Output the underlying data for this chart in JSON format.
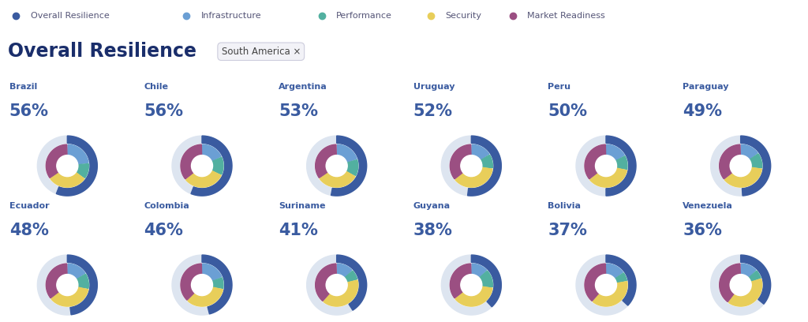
{
  "title": "Overall Resilience",
  "subtitle": "South America ×",
  "legend": [
    {
      "label": "Overall Resilience",
      "color": "#3A5BA0"
    },
    {
      "label": "Infrastructure",
      "color": "#6B9FD4"
    },
    {
      "label": "Performance",
      "color": "#52B0A0"
    },
    {
      "label": "Security",
      "color": "#E8CE5A"
    },
    {
      "label": "Market Readiness",
      "color": "#9B4F82"
    }
  ],
  "countries": [
    {
      "name": "Brazil",
      "score": 56,
      "segments": [
        {
          "label": "Infrastructure",
          "value": 23,
          "color": "#6B9FD4"
        },
        {
          "label": "Performance",
          "value": 12,
          "color": "#52B0A0"
        },
        {
          "label": "Security",
          "value": 30,
          "color": "#E8CE5A"
        },
        {
          "label": "Market Readiness",
          "value": 35,
          "color": "#9B4F82"
        }
      ]
    },
    {
      "name": "Chile",
      "score": 56,
      "segments": [
        {
          "label": "Infrastructure",
          "value": 18,
          "color": "#6B9FD4"
        },
        {
          "label": "Performance",
          "value": 14,
          "color": "#52B0A0"
        },
        {
          "label": "Security",
          "value": 32,
          "color": "#E8CE5A"
        },
        {
          "label": "Market Readiness",
          "value": 36,
          "color": "#9B4F82"
        }
      ]
    },
    {
      "name": "Argentina",
      "score": 53,
      "segments": [
        {
          "label": "Infrastructure",
          "value": 20,
          "color": "#6B9FD4"
        },
        {
          "label": "Performance",
          "value": 13,
          "color": "#52B0A0"
        },
        {
          "label": "Security",
          "value": 32,
          "color": "#E8CE5A"
        },
        {
          "label": "Market Readiness",
          "value": 35,
          "color": "#9B4F82"
        }
      ]
    },
    {
      "name": "Uruguay",
      "score": 52,
      "segments": [
        {
          "label": "Infrastructure",
          "value": 16,
          "color": "#6B9FD4"
        },
        {
          "label": "Performance",
          "value": 11,
          "color": "#52B0A0"
        },
        {
          "label": "Security",
          "value": 37,
          "color": "#E8CE5A"
        },
        {
          "label": "Market Readiness",
          "value": 36,
          "color": "#9B4F82"
        }
      ]
    },
    {
      "name": "Peru",
      "score": 50,
      "segments": [
        {
          "label": "Infrastructure",
          "value": 17,
          "color": "#6B9FD4"
        },
        {
          "label": "Performance",
          "value": 11,
          "color": "#52B0A0"
        },
        {
          "label": "Security",
          "value": 36,
          "color": "#E8CE5A"
        },
        {
          "label": "Market Readiness",
          "value": 36,
          "color": "#9B4F82"
        }
      ]
    },
    {
      "name": "Paraguay",
      "score": 49,
      "segments": [
        {
          "label": "Infrastructure",
          "value": 15,
          "color": "#6B9FD4"
        },
        {
          "label": "Performance",
          "value": 12,
          "color": "#52B0A0"
        },
        {
          "label": "Security",
          "value": 37,
          "color": "#E8CE5A"
        },
        {
          "label": "Market Readiness",
          "value": 36,
          "color": "#9B4F82"
        }
      ]
    },
    {
      "name": "Ecuador",
      "score": 48,
      "segments": [
        {
          "label": "Infrastructure",
          "value": 16,
          "color": "#6B9FD4"
        },
        {
          "label": "Performance",
          "value": 12,
          "color": "#52B0A0"
        },
        {
          "label": "Security",
          "value": 36,
          "color": "#E8CE5A"
        },
        {
          "label": "Market Readiness",
          "value": 36,
          "color": "#9B4F82"
        }
      ]
    },
    {
      "name": "Colombia",
      "score": 46,
      "segments": [
        {
          "label": "Infrastructure",
          "value": 19,
          "color": "#6B9FD4"
        },
        {
          "label": "Performance",
          "value": 9,
          "color": "#52B0A0"
        },
        {
          "label": "Security",
          "value": 34,
          "color": "#E8CE5A"
        },
        {
          "label": "Market Readiness",
          "value": 38,
          "color": "#9B4F82"
        }
      ]
    },
    {
      "name": "Suriname",
      "score": 41,
      "segments": [
        {
          "label": "Infrastructure",
          "value": 13,
          "color": "#6B9FD4"
        },
        {
          "label": "Performance",
          "value": 8,
          "color": "#52B0A0"
        },
        {
          "label": "Security",
          "value": 40,
          "color": "#E8CE5A"
        },
        {
          "label": "Market Readiness",
          "value": 39,
          "color": "#9B4F82"
        }
      ]
    },
    {
      "name": "Guyana",
      "score": 38,
      "segments": [
        {
          "label": "Infrastructure",
          "value": 13,
          "color": "#6B9FD4"
        },
        {
          "label": "Performance",
          "value": 14,
          "color": "#52B0A0"
        },
        {
          "label": "Security",
          "value": 37,
          "color": "#E8CE5A"
        },
        {
          "label": "Market Readiness",
          "value": 36,
          "color": "#9B4F82"
        }
      ]
    },
    {
      "name": "Bolivia",
      "score": 37,
      "segments": [
        {
          "label": "Infrastructure",
          "value": 15,
          "color": "#6B9FD4"
        },
        {
          "label": "Performance",
          "value": 7,
          "color": "#52B0A0"
        },
        {
          "label": "Security",
          "value": 39,
          "color": "#E8CE5A"
        },
        {
          "label": "Market Readiness",
          "value": 39,
          "color": "#9B4F82"
        }
      ]
    },
    {
      "name": "Venezuela",
      "score": 36,
      "segments": [
        {
          "label": "Infrastructure",
          "value": 13,
          "color": "#6B9FD4"
        },
        {
          "label": "Performance",
          "value": 7,
          "color": "#52B0A0"
        },
        {
          "label": "Security",
          "value": 40,
          "color": "#E8CE5A"
        },
        {
          "label": "Market Readiness",
          "value": 40,
          "color": "#9B4F82"
        }
      ]
    }
  ],
  "overall_color": "#3A5BA0",
  "overall_bg_color": "#DDE5F0",
  "background_color": "#FFFFFF",
  "title_color": "#1A2E6B",
  "country_name_color": "#3A5BA0",
  "score_color": "#3A5BA0"
}
